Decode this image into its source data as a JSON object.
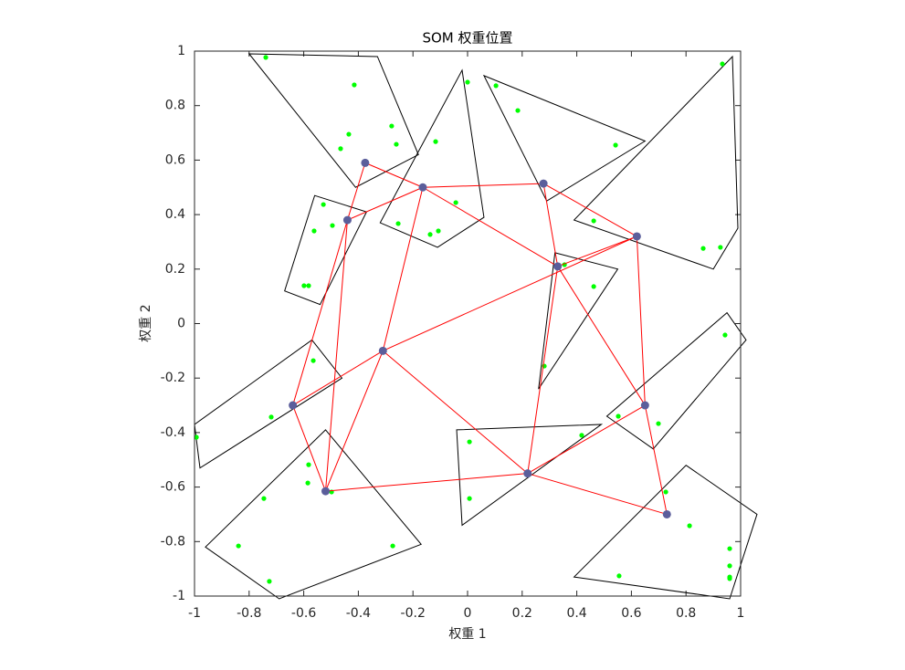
{
  "chart_data": {
    "type": "som",
    "title": "SOM 权重位置",
    "xlabel": "权重 1",
    "ylabel": "权重 2",
    "xlim": [
      -1,
      1
    ],
    "ylim": [
      -1,
      1
    ],
    "xticks": [
      -1,
      -0.8,
      -0.6,
      -0.4,
      -0.2,
      0,
      0.2,
      0.4,
      0.6,
      0.8,
      1
    ],
    "yticks": [
      -1,
      -0.8,
      -0.6,
      -0.4,
      -0.2,
      0,
      0.2,
      0.4,
      0.6,
      0.8,
      1
    ],
    "points": {
      "color": "#00ff00",
      "x": [
        -0.739,
        -0.415,
        -0.278,
        -0.435,
        -0.261,
        -0.465,
        -0.117,
        0.0,
        0.104,
        0.184,
        0.542,
        0.933,
        -0.528,
        -0.562,
        -0.495,
        -0.254,
        -0.043,
        -0.107,
        -0.137,
        -0.599,
        -0.582,
        0.462,
        0.355,
        0.462,
        0.863,
        0.926,
        0.281,
        -0.565,
        -0.719,
        -0.993,
        0.943,
        0.552,
        0.699,
        0.418,
        0.007,
        -0.582,
        -0.585,
        -0.498,
        -0.746,
        0.007,
        0.726,
        0.813,
        -0.839,
        -0.274,
        -0.726,
        0.555,
        0.96,
        0.96,
        0.96,
        0.96
      ],
      "y": [
        0.977,
        0.876,
        0.725,
        0.695,
        0.658,
        0.642,
        0.668,
        0.886,
        0.873,
        0.782,
        0.655,
        0.953,
        0.437,
        0.34,
        0.36,
        0.367,
        0.444,
        0.34,
        0.327,
        0.139,
        0.139,
        0.377,
        0.216,
        0.136,
        0.276,
        0.28,
        -0.156,
        -0.136,
        -0.343,
        -0.417,
        -0.042,
        -0.34,
        -0.367,
        -0.41,
        -0.434,
        -0.518,
        -0.585,
        -0.618,
        -0.642,
        -0.642,
        -0.618,
        -0.742,
        -0.816,
        -0.816,
        -0.946,
        -0.926,
        -0.826,
        -0.889,
        -0.93,
        -0.936
      ]
    },
    "neurons": {
      "color": "#5b5e9b",
      "x": [
        -0.375,
        -0.164,
        0.278,
        -0.44,
        0.62,
        0.33,
        -0.31,
        -0.64,
        0.65,
        0.22,
        -0.52,
        0.73
      ],
      "y": [
        0.59,
        0.5,
        0.514,
        0.38,
        0.32,
        0.21,
        -0.1,
        -0.3,
        -0.3,
        -0.55,
        -0.615,
        -0.7
      ]
    },
    "links": [
      [
        0,
        1
      ],
      [
        0,
        3
      ],
      [
        1,
        2
      ],
      [
        1,
        3
      ],
      [
        1,
        5
      ],
      [
        1,
        6
      ],
      [
        2,
        4
      ],
      [
        2,
        5
      ],
      [
        3,
        7
      ],
      [
        3,
        10
      ],
      [
        4,
        5
      ],
      [
        4,
        8
      ],
      [
        4,
        6
      ],
      [
        5,
        8
      ],
      [
        5,
        9
      ],
      [
        6,
        7
      ],
      [
        6,
        10
      ],
      [
        6,
        9
      ],
      [
        7,
        10
      ],
      [
        8,
        9
      ],
      [
        8,
        11
      ],
      [
        9,
        10
      ],
      [
        9,
        11
      ]
    ],
    "link_color": "#ff0000",
    "region_color": "#000000",
    "regions": [
      {
        "x": [
          -0.8,
          -0.33,
          -0.18,
          -0.41
        ],
        "y": [
          0.99,
          0.98,
          0.62,
          0.5
        ]
      },
      {
        "x": [
          -0.02,
          0.06,
          -0.11,
          -0.32
        ],
        "y": [
          0.93,
          0.39,
          0.28,
          0.37
        ]
      },
      {
        "x": [
          0.06,
          0.65,
          0.29
        ],
        "y": [
          0.91,
          0.67,
          0.45
        ]
      },
      {
        "x": [
          0.97,
          0.99,
          0.9,
          0.39
        ],
        "y": [
          0.98,
          0.35,
          0.2,
          0.38
        ]
      },
      {
        "x": [
          -0.56,
          -0.37,
          -0.54,
          -0.67
        ],
        "y": [
          0.47,
          0.41,
          0.07,
          0.12
        ]
      },
      {
        "x": [
          0.32,
          0.55,
          0.26
        ],
        "y": [
          0.26,
          0.2,
          -0.24
        ]
      },
      {
        "x": [
          -0.57,
          -0.46,
          -0.98,
          -1.0
        ],
        "y": [
          -0.06,
          -0.2,
          -0.53,
          -0.37
        ]
      },
      {
        "x": [
          0.95,
          1.02,
          0.68,
          0.51
        ],
        "y": [
          0.04,
          -0.06,
          -0.46,
          -0.34
        ]
      },
      {
        "x": [
          -0.04,
          0.49,
          -0.02
        ],
        "y": [
          -0.39,
          -0.37,
          -0.74
        ]
      },
      {
        "x": [
          -0.52,
          -0.17,
          -0.69,
          -0.96
        ],
        "y": [
          -0.39,
          -0.81,
          -1.01,
          -0.82
        ]
      },
      {
        "x": [
          0.8,
          1.06,
          0.96,
          0.39
        ],
        "y": [
          -0.52,
          -0.7,
          -1.01,
          -0.93
        ]
      }
    ]
  }
}
